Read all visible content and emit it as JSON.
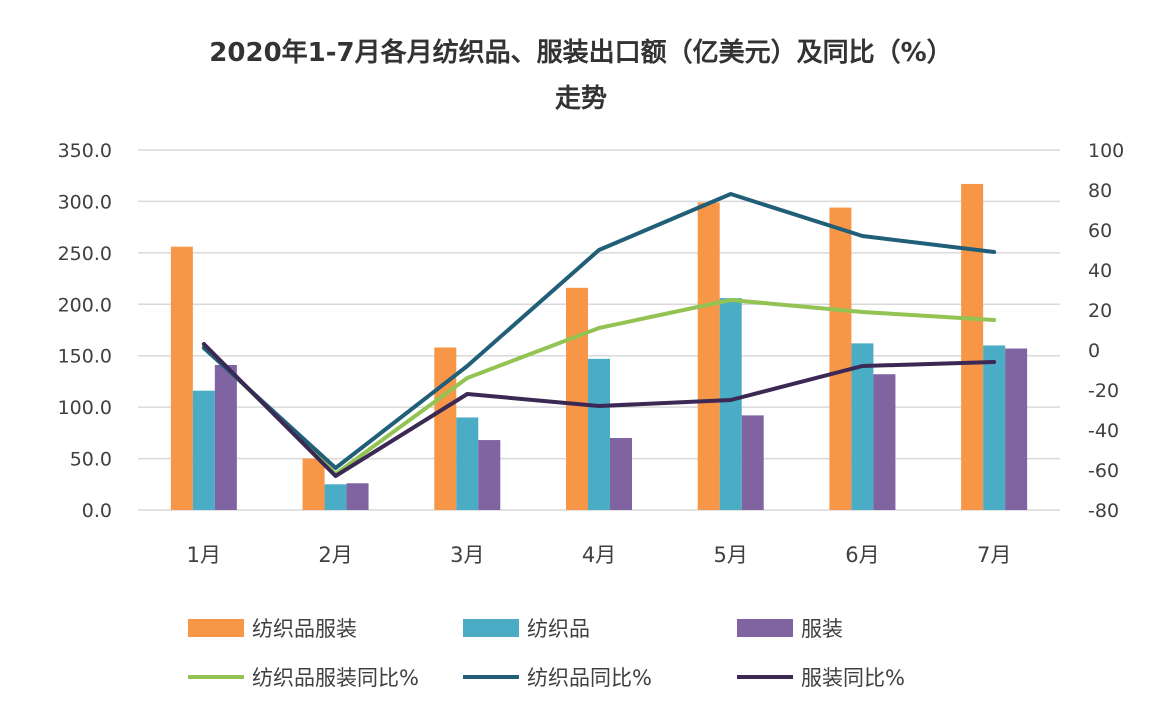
{
  "chart_data": {
    "type": "bar+line",
    "title_line1": "2020年1-7月各月纺织品、服装出口额（亿美元）及同比（%）",
    "title_line2": "走势",
    "categories": [
      "1月",
      "2月",
      "3月",
      "4月",
      "5月",
      "6月",
      "7月"
    ],
    "y_left": {
      "min": 0,
      "max": 350,
      "step": 50,
      "ticks": [
        "0.0",
        "50.0",
        "100.0",
        "150.0",
        "200.0",
        "250.0",
        "300.0",
        "350.0"
      ]
    },
    "y_right": {
      "min": -80,
      "max": 100,
      "step": 20,
      "ticks": [
        "-80",
        "-60",
        "-40",
        "-20",
        "0",
        "20",
        "40",
        "60",
        "80",
        "100"
      ]
    },
    "bar_series": [
      {
        "name": "纺织品服装",
        "color": "#F79646",
        "values": [
          256,
          50,
          158,
          216,
          299,
          294,
          317
        ]
      },
      {
        "name": "纺织品",
        "color": "#4BACC6",
        "values": [
          116,
          25,
          90,
          147,
          206,
          162,
          160
        ]
      },
      {
        "name": "服装",
        "color": "#8064A2",
        "values": [
          141,
          26,
          68,
          70,
          92,
          132,
          157
        ]
      }
    ],
    "line_series": [
      {
        "name": "纺织品服装同比%",
        "color": "#92C353",
        "values": [
          2,
          -62,
          -14,
          11,
          25,
          19,
          15
        ]
      },
      {
        "name": "纺织品同比%",
        "color": "#215F78",
        "values": [
          1,
          -59,
          -8,
          50,
          78,
          57,
          49
        ]
      },
      {
        "name": "服装同比%",
        "color": "#3B2854",
        "values": [
          3,
          -63,
          -22,
          -28,
          -25,
          -8,
          -6
        ]
      }
    ],
    "grid": true,
    "legend_position": "bottom"
  }
}
